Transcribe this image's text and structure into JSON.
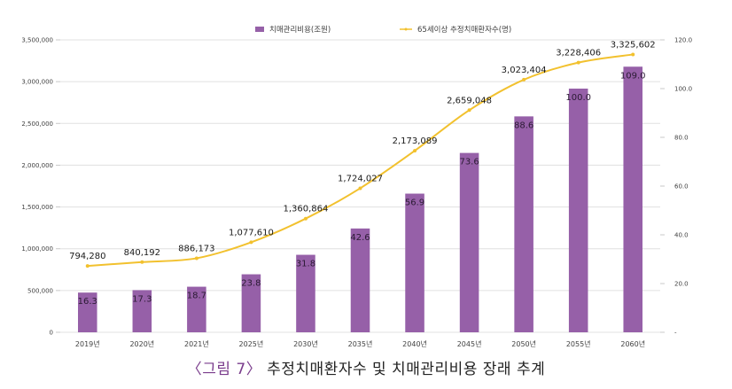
{
  "caption": {
    "figure_label": "〈그림 7〉",
    "title": "추정치매환자수 및 치매관리비용 장래 추계"
  },
  "colors": {
    "bar": "#9660a8",
    "line": "#f2c12e",
    "grid": "#e0e0e0",
    "caption_label": "#7a3c8c"
  },
  "chart_data": {
    "type": "bar+line",
    "title": "",
    "categories": [
      "2019년",
      "2020년",
      "2021년",
      "2025년",
      "2030년",
      "2035년",
      "2040년",
      "2045년",
      "2050년",
      "2055년",
      "2060년"
    ],
    "series": [
      {
        "name": "치매관리비용(조원)",
        "type": "bar",
        "axis": "right",
        "values": [
          16.3,
          17.3,
          18.7,
          23.8,
          31.8,
          42.6,
          56.9,
          73.6,
          88.6,
          100.0,
          109.0
        ],
        "labels": [
          "16.3",
          "17.3",
          "18.7",
          "23.8",
          "31.8",
          "42.6",
          "56.9",
          "73.6",
          "88.6",
          "100.0",
          "109.0"
        ]
      },
      {
        "name": "65세이상 추정치매환자수(명)",
        "type": "line",
        "axis": "left",
        "values": [
          794280,
          840192,
          886173,
          1077610,
          1360864,
          1724027,
          2173089,
          2659048,
          3023404,
          3228406,
          3325602
        ],
        "labels": [
          "794,280",
          "840,192",
          "886,173",
          "1,077,610",
          "1,360,864",
          "1,724,027",
          "2,173,089",
          "2,659,048",
          "3,023,404",
          "3,228,406",
          "3,325,602"
        ]
      }
    ],
    "y_left": {
      "range": [
        0,
        3500000
      ],
      "ticks": [
        0,
        500000,
        1000000,
        1500000,
        2000000,
        2500000,
        3000000,
        3500000
      ],
      "tick_labels": [
        "0",
        "500,000",
        "1,000,000",
        "1,500,000",
        "2,000,000",
        "2,500,000",
        "3,000,000",
        "3,500,000"
      ]
    },
    "y_right": {
      "range": [
        0,
        120
      ],
      "ticks": [
        0,
        20,
        40,
        60,
        80,
        100,
        120
      ],
      "tick_labels": [
        "-",
        "20.0",
        "40.0",
        "60.0",
        "80.0",
        "100.0",
        "120.0"
      ]
    },
    "grid": true,
    "legend_position": "top-center"
  }
}
